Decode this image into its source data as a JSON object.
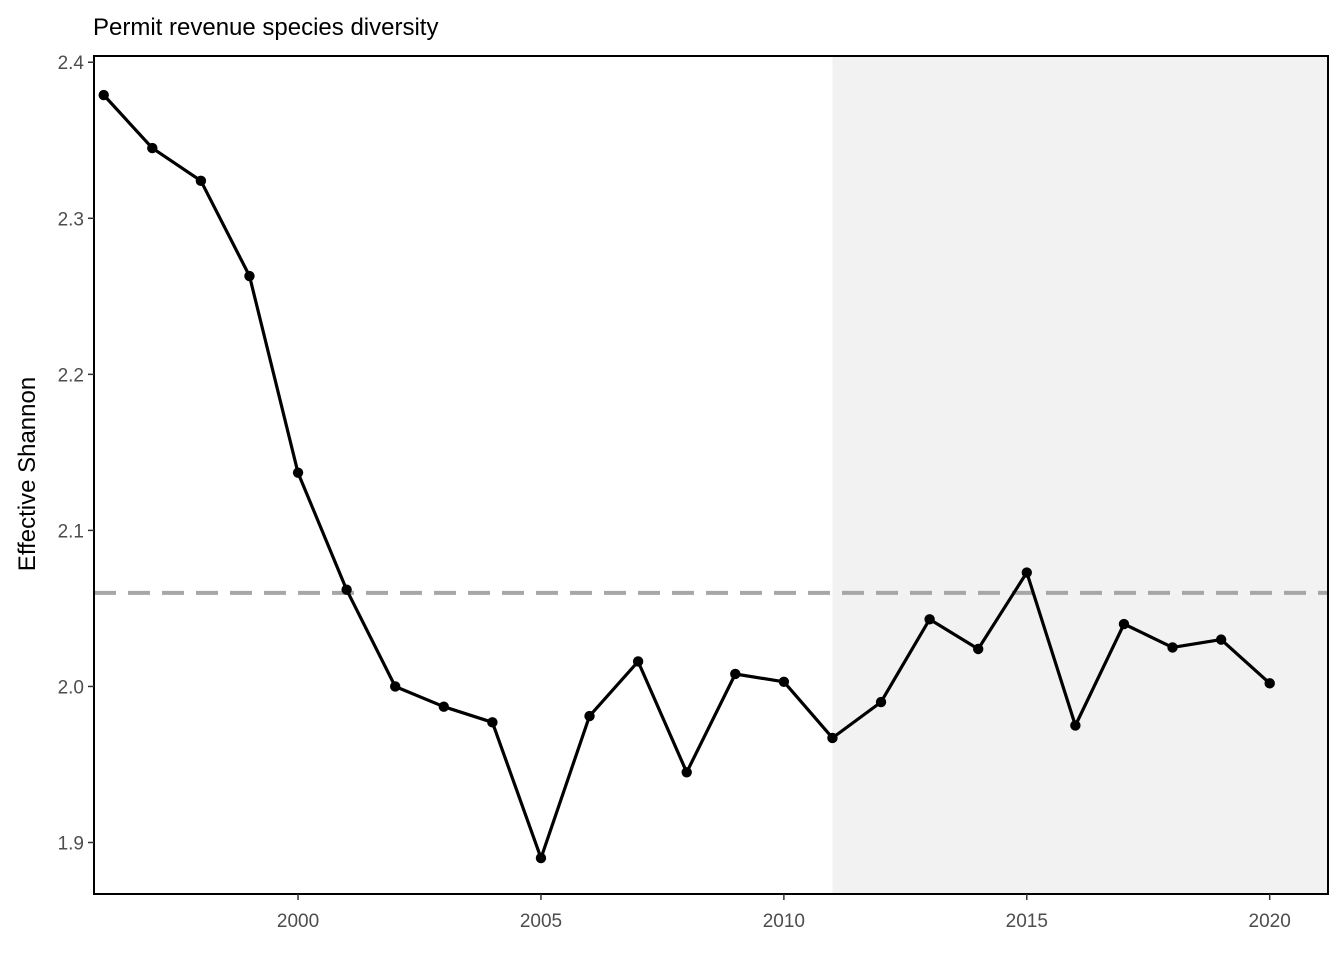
{
  "chart_data": {
    "type": "line",
    "title": "Permit revenue species diversity",
    "xlabel": "",
    "ylabel": "Effective Shannon",
    "xlim": [
      1995.8,
      2021.2
    ],
    "ylim": [
      1.867,
      2.404
    ],
    "x_ticks": [
      2000,
      2005,
      2010,
      2015,
      2020
    ],
    "x_tick_labels": [
      "2000",
      "2005",
      "2010",
      "2015",
      "2020"
    ],
    "y_ticks": [
      1.9,
      2.0,
      2.1,
      2.2,
      2.3,
      2.4
    ],
    "y_tick_labels": [
      "1.9",
      "2.0",
      "2.1",
      "2.2",
      "2.3",
      "2.4"
    ],
    "grid": false,
    "shaded_region": {
      "x_start": 2011,
      "x_end": 2021.2,
      "color": "#f2f2f2"
    },
    "reference_line": {
      "y": 2.06,
      "style": "dashed",
      "color": "#a6a6a6"
    },
    "series": [
      {
        "color": "#000000",
        "x": [
          1996,
          1997,
          1998,
          1999,
          2000,
          2001,
          2002,
          2003,
          2004,
          2005,
          2006,
          2007,
          2008,
          2009,
          2010,
          2011,
          2012,
          2013,
          2014,
          2015,
          2016,
          2017,
          2018,
          2019,
          2020
        ],
        "y": [
          2.379,
          2.345,
          2.324,
          2.263,
          2.137,
          2.062,
          2.0,
          1.987,
          1.977,
          1.89,
          1.981,
          2.016,
          1.945,
          2.008,
          2.003,
          1.967,
          1.99,
          2.043,
          2.024,
          2.073,
          1.975,
          2.04,
          2.025,
          2.03,
          2.002
        ]
      }
    ]
  }
}
